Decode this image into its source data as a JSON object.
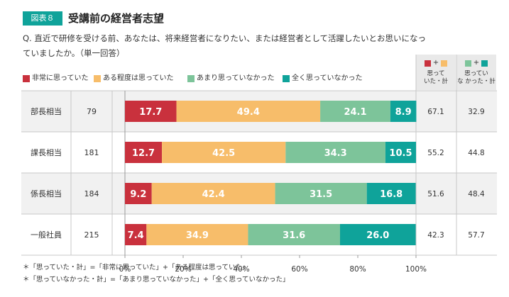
{
  "figure": {
    "badge": "図表８",
    "title": "受講前の経営者志望"
  },
  "question": {
    "text": "Q. 直近で研修を受ける前、あなたは、将来経営者になりたい、または経営者として活躍したいとお思いになっていましたか。（単一回答）"
  },
  "legend": [
    {
      "label": "非常に思っていた",
      "color": "#c9313d"
    },
    {
      "label": "ある程度は思っていた",
      "color": "#f7bd6a"
    },
    {
      "label": "あまり思っていなかった",
      "color": "#7dc49a"
    },
    {
      "label": "全く思っていなかった",
      "color": "#0fa39a"
    }
  ],
  "summary_headers": [
    {
      "plus": "+",
      "label_line1": "思って",
      "label_line2": "いた・計",
      "colors": [
        "#c9313d",
        "#f7bd6a"
      ]
    },
    {
      "plus": "+",
      "label_line1": "思ってい",
      "label_line2": "な かった・計",
      "colors": [
        "#7dc49a",
        "#0fa39a"
      ]
    }
  ],
  "chart_data": {
    "type": "bar",
    "orientation": "horizontal",
    "stacked": true,
    "categories": [
      "部長相当",
      "課長相当",
      "係長相当",
      "一般社員"
    ],
    "n": [
      "79",
      "181",
      "184",
      "215"
    ],
    "series": [
      {
        "name": "非常に思っていた",
        "color": "#c9313d",
        "values": [
          17.7,
          12.7,
          9.2,
          7.4
        ]
      },
      {
        "name": "ある程度は思っていた",
        "color": "#f7bd6a",
        "values": [
          49.4,
          42.5,
          42.4,
          34.9
        ]
      },
      {
        "name": "あまり思っていなかった",
        "color": "#7dc49a",
        "values": [
          24.1,
          34.3,
          31.5,
          31.6
        ]
      },
      {
        "name": "全く思っていなかった",
        "color": "#0fa39a",
        "values": [
          8.9,
          10.5,
          16.8,
          26.0
        ]
      }
    ],
    "totals_thought": [
      "67.1",
      "55.2",
      "51.6",
      "42.3"
    ],
    "totals_not_thought": [
      "32.9",
      "44.8",
      "48.4",
      "57.7"
    ],
    "xlim": [
      0,
      100
    ],
    "xticks": [
      "0%",
      "20%",
      "40%",
      "60%",
      "80%",
      "100%"
    ],
    "grid": false
  },
  "footnotes": [
    "＊「思っていた・計」=「非常に思っていた」+「ある程度は思っていた」",
    "＊「思っていなかった・計」=「あまり思っていなかった」+「全く思っていなかった」"
  ]
}
